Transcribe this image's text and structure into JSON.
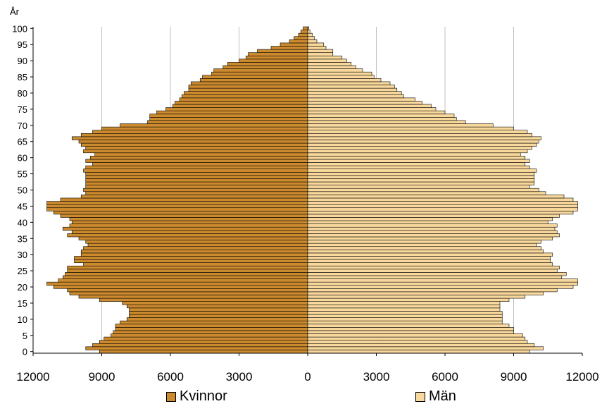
{
  "chart_data": {
    "type": "bar",
    "orientation": "horizontal",
    "title": "",
    "y_unit_label": "År",
    "x_tick_labels": [
      "12000",
      "9000",
      "6000",
      "3000",
      "0",
      "3000",
      "6000",
      "9000",
      "12000"
    ],
    "y_tick_labels": [
      "100",
      "95",
      "90",
      "85",
      "80",
      "75",
      "70",
      "65",
      "60",
      "55",
      "50",
      "45",
      "40",
      "35",
      "30",
      "25",
      "20",
      "15",
      "10",
      "5",
      "0"
    ],
    "xlim": [
      -12000,
      12000
    ],
    "ylim": [
      0,
      100
    ],
    "grid": "vertical",
    "legend_position": "bottom",
    "ages": [
      0,
      1,
      2,
      3,
      4,
      5,
      6,
      7,
      8,
      9,
      10,
      11,
      12,
      13,
      14,
      15,
      16,
      17,
      18,
      19,
      20,
      21,
      22,
      23,
      24,
      25,
      26,
      27,
      28,
      29,
      30,
      31,
      32,
      33,
      34,
      35,
      36,
      37,
      38,
      39,
      40,
      41,
      42,
      43,
      44,
      45,
      46,
      47,
      48,
      49,
      50,
      51,
      52,
      53,
      54,
      55,
      56,
      57,
      58,
      59,
      60,
      61,
      62,
      63,
      64,
      65,
      66,
      67,
      68,
      69,
      70,
      71,
      72,
      73,
      74,
      75,
      76,
      77,
      78,
      79,
      80,
      81,
      82,
      83,
      84,
      85,
      86,
      87,
      88,
      89,
      90,
      91,
      92,
      93,
      94,
      95,
      96,
      97,
      98,
      99,
      100
    ],
    "series": [
      {
        "name": "Kvinnor",
        "color": "#cc8a2e",
        "values": [
          9100,
          9700,
          9400,
          9100,
          8900,
          8600,
          8500,
          8400,
          8400,
          8200,
          7900,
          7800,
          7800,
          7800,
          7900,
          8100,
          9100,
          10000,
          10400,
          10500,
          11100,
          11400,
          10900,
          10700,
          10600,
          10500,
          10500,
          9800,
          10200,
          10200,
          9900,
          9900,
          9800,
          9600,
          9700,
          10000,
          10500,
          10300,
          10700,
          10400,
          10300,
          10400,
          10800,
          11100,
          11400,
          11400,
          11400,
          10800,
          9900,
          9700,
          9800,
          9700,
          9700,
          9700,
          9700,
          9700,
          9800,
          9700,
          9400,
          9700,
          9500,
          9300,
          9800,
          9700,
          9900,
          10000,
          10300,
          9900,
          9400,
          9000,
          8200,
          7000,
          6900,
          6900,
          6600,
          6200,
          5900,
          5800,
          5600,
          5500,
          5400,
          5200,
          5200,
          5100,
          4700,
          4600,
          4200,
          4100,
          3700,
          3500,
          3000,
          2700,
          2600,
          2200,
          1600,
          1200,
          800,
          600,
          400,
          300,
          200
        ]
      },
      {
        "name": "Män",
        "color": "#f8d89c",
        "values": [
          9700,
          10300,
          9900,
          9600,
          9500,
          9400,
          9000,
          9000,
          8800,
          8500,
          8500,
          8500,
          8500,
          8400,
          8400,
          8400,
          8800,
          9500,
          10300,
          10900,
          11600,
          11800,
          11800,
          11100,
          11300,
          10900,
          11000,
          10700,
          10600,
          10600,
          10700,
          10300,
          10200,
          10000,
          10200,
          10700,
          11000,
          10900,
          10800,
          10900,
          10500,
          10700,
          11000,
          11600,
          11800,
          11800,
          11800,
          11600,
          11200,
          10400,
          10100,
          9700,
          9900,
          9900,
          9900,
          9900,
          10000,
          9700,
          9500,
          9700,
          9500,
          9300,
          9600,
          9800,
          10000,
          10100,
          10200,
          9800,
          9600,
          9000,
          8100,
          6900,
          6500,
          6400,
          6000,
          5600,
          5400,
          5000,
          4700,
          4200,
          4100,
          3900,
          3800,
          3600,
          3200,
          2900,
          2800,
          2400,
          2100,
          1900,
          1700,
          1500,
          1100,
          1100,
          800,
          700,
          400,
          300,
          200,
          100,
          50
        ]
      }
    ]
  }
}
